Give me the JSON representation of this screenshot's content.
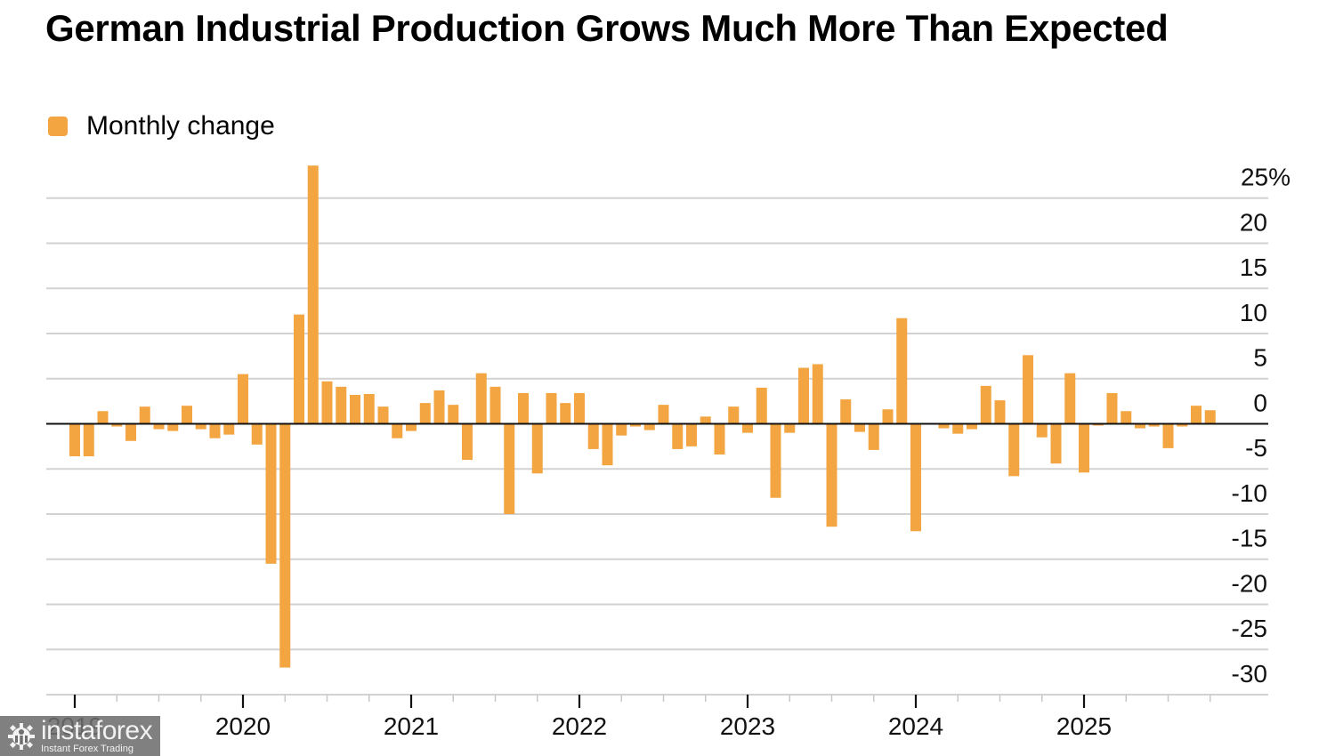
{
  "header": {
    "title": "German Industrial Production Grows Much More Than Expected"
  },
  "legend": {
    "label": "Monthly change",
    "color": "#F2A541"
  },
  "watermark": {
    "brand": "instaforex",
    "tagline": "Instant Forex Trading"
  },
  "chart_data": {
    "type": "bar",
    "title": "German Industrial Production Grows Much More Than Expected",
    "xlabel": "",
    "ylabel": "",
    "y_unit": "%",
    "ylim": [
      -30,
      25
    ],
    "y_ticks": [
      25,
      20,
      15,
      10,
      5,
      0,
      -5,
      -10,
      -15,
      -20,
      -25,
      -30
    ],
    "y_tick_labels": [
      "25%",
      "20",
      "15",
      "10",
      "5",
      "0",
      "-5",
      "-10",
      "-15",
      "-20",
      "-25",
      "-30"
    ],
    "y_axis_side": "right",
    "grid": true,
    "legend_position": "top-left",
    "x_tick_labels": [
      "2019",
      "2020",
      "2021",
      "2022",
      "2023",
      "2024",
      "2025"
    ],
    "x_start": "2019-01",
    "x_end": "2025-10",
    "series": [
      {
        "name": "Monthly change",
        "color": "#F2A541",
        "categories": [
          "2019-01",
          "2019-02",
          "2019-03",
          "2019-04",
          "2019-05",
          "2019-06",
          "2019-07",
          "2019-08",
          "2019-09",
          "2019-10",
          "2019-11",
          "2019-12",
          "2020-01",
          "2020-02",
          "2020-03",
          "2020-04",
          "2020-05",
          "2020-06",
          "2020-07",
          "2020-08",
          "2020-09",
          "2020-10",
          "2020-11",
          "2020-12",
          "2021-01",
          "2021-02",
          "2021-03",
          "2021-04",
          "2021-05",
          "2021-06",
          "2021-07",
          "2021-08",
          "2021-09",
          "2021-10",
          "2021-11",
          "2021-12",
          "2022-01",
          "2022-02",
          "2022-03",
          "2022-04",
          "2022-05",
          "2022-06",
          "2022-07",
          "2022-08",
          "2022-09",
          "2022-10",
          "2022-11",
          "2022-12",
          "2023-01",
          "2023-02",
          "2023-03",
          "2023-04",
          "2023-05",
          "2023-06",
          "2023-07",
          "2023-08",
          "2023-09",
          "2023-10",
          "2023-11",
          "2023-12",
          "2024-01",
          "2024-02",
          "2024-03",
          "2024-04",
          "2024-05",
          "2024-06",
          "2024-07",
          "2024-08",
          "2024-09",
          "2024-10",
          "2024-11",
          "2024-12",
          "2025-01",
          "2025-02",
          "2025-03",
          "2025-04",
          "2025-05",
          "2025-06",
          "2025-07",
          "2025-08",
          "2025-09",
          "2025-10"
        ],
        "values": [
          -3.6,
          -3.6,
          1.4,
          -0.3,
          -1.9,
          1.9,
          -0.6,
          -0.8,
          2.0,
          -0.6,
          -1.6,
          -1.2,
          5.5,
          -2.3,
          -15.5,
          -27.0,
          12.1,
          28.6,
          4.7,
          4.1,
          3.2,
          3.3,
          1.9,
          -1.6,
          -0.8,
          2.3,
          3.7,
          2.1,
          -4.0,
          5.6,
          4.1,
          -10.0,
          3.4,
          -5.5,
          3.4,
          2.3,
          3.4,
          -2.8,
          -4.6,
          -1.3,
          -0.3,
          -0.7,
          2.1,
          -2.8,
          -2.5,
          0.8,
          -3.4,
          1.9,
          -1.0,
          4.0,
          -8.2,
          -1.0,
          6.2,
          6.6,
          -11.4,
          2.7,
          -0.9,
          -2.9,
          1.6,
          11.7,
          -11.9,
          0.0,
          -0.5,
          -1.1,
          -0.6,
          4.2,
          2.6,
          -5.8,
          7.6,
          -1.5,
          -4.4,
          5.6,
          -5.4,
          -0.2,
          3.4,
          1.4,
          -0.5,
          -0.3,
          -2.7,
          -0.3,
          2.0,
          1.5
        ]
      }
    ]
  }
}
